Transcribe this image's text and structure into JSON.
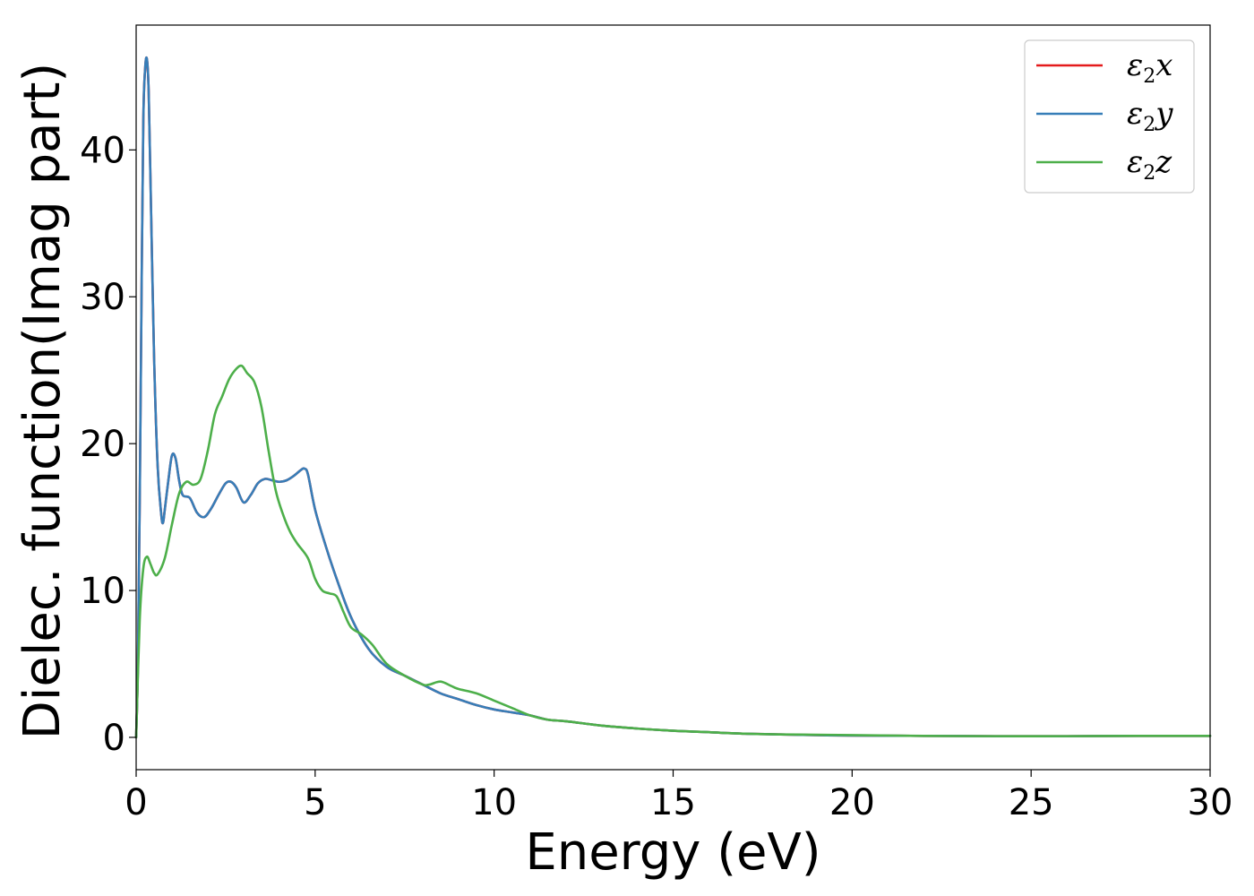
{
  "chart_data": {
    "type": "line",
    "title": "",
    "xlabel": "Energy (eV)",
    "ylabel": "Dielec. function(Imag part)",
    "xlim": [
      0,
      30
    ],
    "ylim": [
      -2.2,
      48.5
    ],
    "xticks": [
      0,
      5,
      10,
      15,
      20,
      25,
      30
    ],
    "yticks": [
      0,
      10,
      20,
      30,
      40
    ],
    "grid": false,
    "legend_position": "top-right",
    "series": [
      {
        "name": "ε2x",
        "legend_symbol": "ε",
        "legend_sub": "2",
        "legend_var": "x",
        "color": "#e41a1c",
        "x": [
          0,
          0.05,
          0.1,
          0.15,
          0.2,
          0.25,
          0.3,
          0.35,
          0.4,
          0.5,
          0.6,
          0.7,
          0.75,
          0.8,
          0.9,
          1.0,
          1.1,
          1.2,
          1.3,
          1.5,
          1.7,
          1.9,
          2.1,
          2.3,
          2.5,
          2.65,
          2.8,
          3.0,
          3.2,
          3.4,
          3.6,
          3.8,
          4.0,
          4.2,
          4.4,
          4.6,
          4.7,
          4.8,
          5.0,
          5.3,
          5.6,
          6.0,
          6.5,
          7.0,
          7.5,
          8.0,
          8.5,
          9.0,
          9.5,
          10.0,
          10.5,
          11.0,
          11.5,
          12.0,
          13.0,
          14.0,
          15.0,
          16.0,
          17.0,
          18.0,
          19.0,
          20.0,
          22.0,
          24.0,
          26.0,
          28.0,
          30.0
        ],
        "y": [
          0,
          5,
          16,
          30,
          42,
          45.5,
          46.2,
          44,
          38,
          26,
          18.5,
          15.2,
          14.6,
          15.5,
          17.5,
          19.2,
          19.0,
          17.5,
          16.5,
          16.3,
          15.3,
          15.0,
          15.6,
          16.5,
          17.3,
          17.4,
          17.0,
          16.0,
          16.5,
          17.3,
          17.6,
          17.5,
          17.4,
          17.5,
          17.8,
          18.2,
          18.3,
          17.9,
          15.5,
          13.0,
          10.8,
          8.2,
          6.0,
          4.8,
          4.2,
          3.6,
          3.0,
          2.6,
          2.2,
          1.9,
          1.7,
          1.5,
          1.2,
          1.1,
          0.8,
          0.6,
          0.45,
          0.35,
          0.25,
          0.2,
          0.15,
          0.12,
          0.1,
          0.08,
          0.08,
          0.1,
          0.1
        ]
      },
      {
        "name": "ε2y",
        "legend_symbol": "ε",
        "legend_sub": "2",
        "legend_var": "y",
        "color": "#377eb8",
        "x": [
          0,
          0.05,
          0.1,
          0.15,
          0.2,
          0.25,
          0.3,
          0.35,
          0.4,
          0.5,
          0.6,
          0.7,
          0.75,
          0.8,
          0.9,
          1.0,
          1.1,
          1.2,
          1.3,
          1.5,
          1.7,
          1.9,
          2.1,
          2.3,
          2.5,
          2.65,
          2.8,
          3.0,
          3.2,
          3.4,
          3.6,
          3.8,
          4.0,
          4.2,
          4.4,
          4.6,
          4.7,
          4.8,
          5.0,
          5.3,
          5.6,
          6.0,
          6.5,
          7.0,
          7.5,
          8.0,
          8.5,
          9.0,
          9.5,
          10.0,
          10.5,
          11.0,
          11.5,
          12.0,
          13.0,
          14.0,
          15.0,
          16.0,
          17.0,
          18.0,
          19.0,
          20.0,
          22.0,
          24.0,
          26.0,
          28.0,
          30.0
        ],
        "y": [
          0,
          5,
          16,
          30,
          42,
          45.5,
          46.2,
          44,
          38,
          26,
          18.5,
          15.2,
          14.6,
          15.5,
          17.5,
          19.2,
          19.0,
          17.5,
          16.5,
          16.3,
          15.3,
          15.0,
          15.6,
          16.5,
          17.3,
          17.4,
          17.0,
          16.0,
          16.5,
          17.3,
          17.6,
          17.5,
          17.4,
          17.5,
          17.8,
          18.2,
          18.3,
          17.9,
          15.5,
          13.0,
          10.8,
          8.2,
          6.0,
          4.8,
          4.2,
          3.6,
          3.0,
          2.6,
          2.2,
          1.9,
          1.7,
          1.5,
          1.2,
          1.1,
          0.8,
          0.6,
          0.45,
          0.35,
          0.25,
          0.2,
          0.15,
          0.12,
          0.1,
          0.08,
          0.08,
          0.1,
          0.1
        ]
      },
      {
        "name": "ε2z",
        "legend_symbol": "ε",
        "legend_sub": "2",
        "legend_var": "z",
        "color": "#4daf4a",
        "x": [
          0,
          0.1,
          0.2,
          0.3,
          0.4,
          0.5,
          0.6,
          0.8,
          1.0,
          1.2,
          1.4,
          1.6,
          1.8,
          2.0,
          2.2,
          2.4,
          2.6,
          2.8,
          2.95,
          3.1,
          3.3,
          3.5,
          3.7,
          3.9,
          4.1,
          4.3,
          4.5,
          4.8,
          5.0,
          5.2,
          5.4,
          5.6,
          5.8,
          6.0,
          6.3,
          6.6,
          7.0,
          7.5,
          8.0,
          8.2,
          8.5,
          8.8,
          9.0,
          9.5,
          10.0,
          10.5,
          11.0,
          11.5,
          12.0,
          13.0,
          14.0,
          15.0,
          16.0,
          17.0,
          18.0,
          20.0,
          22.0,
          24.0,
          26.0,
          28.0,
          30.0
        ],
        "y": [
          0,
          8,
          11.5,
          12.3,
          11.8,
          11.2,
          11.1,
          12.2,
          14.5,
          16.6,
          17.4,
          17.2,
          17.6,
          19.5,
          22.0,
          23.2,
          24.4,
          25.1,
          25.3,
          24.8,
          24.2,
          22.5,
          19.5,
          16.8,
          15.2,
          14.0,
          13.2,
          12.2,
          10.8,
          10.0,
          9.8,
          9.6,
          8.5,
          7.5,
          7.0,
          6.3,
          5.0,
          4.2,
          3.6,
          3.6,
          3.8,
          3.5,
          3.3,
          3.0,
          2.5,
          2.0,
          1.5,
          1.2,
          1.1,
          0.8,
          0.6,
          0.45,
          0.35,
          0.25,
          0.2,
          0.15,
          0.1,
          0.08,
          0.08,
          0.1,
          0.1
        ]
      }
    ]
  }
}
